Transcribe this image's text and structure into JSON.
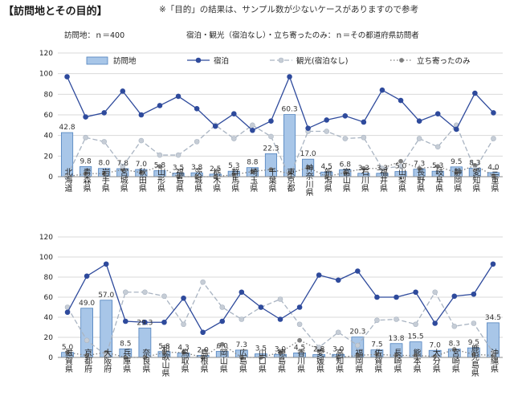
{
  "header": {
    "title": "【訪問地とその目的】",
    "note": "※「目的」の結果は、サンプル数が少ないケースがありますので参考"
  },
  "colors": {
    "bar_fill": "#a8c6e8",
    "bar_stroke": "#4f81bd",
    "stay_line": "#2e4a9c",
    "sightseeing_line": "#a9b4c2",
    "stopby_line": "#7f7f7f",
    "grid": "#d9d9d9"
  },
  "chart_data": [
    {
      "type": "bar",
      "header_text": "訪問地：ｎ＝400",
      "header_text_right": "宿泊・観光（宿泊なし）・立ち寄ったのみ：ｎ＝その都道府県訪問者",
      "ylim": [
        0,
        120
      ],
      "yticks": [
        0,
        20,
        40,
        60,
        80,
        100,
        120
      ],
      "grid": true,
      "legend_position": "top",
      "categories": [
        "北海道",
        "青森県",
        "岩手県",
        "宮城県",
        "秋田県",
        "山形県",
        "福島県",
        "茨城県",
        "栃木県",
        "群馬県",
        "埼玉県",
        "千葉県",
        "東京都",
        "神奈川県",
        "新潟県",
        "富山県",
        "石川県",
        "福井県",
        "山梨県",
        "長野県",
        "岐阜県",
        "静岡県",
        "愛知県",
        "三重県"
      ],
      "series": [
        {
          "name": "訪問地",
          "kind": "bar",
          "values": [
            42.8,
            9.8,
            8.0,
            7.8,
            7.0,
            5.8,
            3.5,
            3.8,
            2.5,
            5.3,
            8.8,
            22.3,
            60.3,
            17.0,
            4.5,
            6.8,
            3.3,
            3.3,
            5.0,
            7.3,
            5.3,
            9.5,
            8.3,
            4.0
          ]
        },
        {
          "name": "宿泊",
          "kind": "line",
          "values": [
            97,
            58,
            62,
            83,
            60,
            69,
            78,
            66,
            49,
            61,
            45,
            54,
            97,
            47,
            55,
            59,
            53,
            84,
            74,
            54,
            61,
            46,
            81,
            62
          ]
        },
        {
          "name": "観光(宿泊なし)",
          "kind": "line",
          "values": [
            0,
            38,
            34,
            10,
            35,
            21,
            21,
            34,
            50,
            37,
            50,
            39,
            0,
            44,
            44,
            37,
            38,
            8,
            10,
            37,
            29,
            50,
            7,
            37
          ]
        },
        {
          "name": "立ち寄ったのみ",
          "kind": "line",
          "values": [
            0,
            3,
            3,
            7,
            4,
            10,
            0,
            0,
            0,
            2,
            5,
            7,
            3,
            9,
            0,
            4,
            8,
            8,
            15,
            8,
            10,
            4,
            11,
            1
          ]
        }
      ]
    },
    {
      "type": "bar",
      "ylim": [
        0,
        120
      ],
      "yticks": [
        0,
        20,
        40,
        60,
        80,
        100,
        120
      ],
      "grid": true,
      "categories": [
        "滋賀県",
        "京都府",
        "大阪府",
        "兵庫県",
        "奈良県",
        "和歌山県",
        "鳥取県",
        "島根県",
        "岡山県",
        "広島県",
        "山口県",
        "徳島県",
        "香川県",
        "愛媛県",
        "高知県",
        "福岡県",
        "佐賀県",
        "長崎県",
        "熊本県",
        "大分県",
        "宮崎県",
        "鹿児島県",
        "沖縄県"
      ],
      "series": [
        {
          "name": "訪問地",
          "kind": "bar",
          "values": [
            5.0,
            49.0,
            57.0,
            8.5,
            29.3,
            5.8,
            4.3,
            2.0,
            6.0,
            7.3,
            3.5,
            3.0,
            4.5,
            2.8,
            3.0,
            20.3,
            7.5,
            13.8,
            15.5,
            7.0,
            8.3,
            9.5,
            34.5
          ]
        },
        {
          "name": "宿泊",
          "kind": "line",
          "values": [
            45,
            81,
            93,
            36,
            35,
            35,
            59,
            25,
            36,
            65,
            50,
            38,
            50,
            82,
            77,
            86,
            60,
            60,
            65,
            34,
            61,
            63,
            93
          ]
        },
        {
          "name": "観光(宿泊なし)",
          "kind": "line",
          "values": [
            50,
            17,
            2,
            65,
            65,
            61,
            33,
            75,
            50,
            38,
            50,
            58,
            33,
            10,
            25,
            12,
            37,
            38,
            33,
            65,
            31,
            34,
            5
          ]
        },
        {
          "name": "立ち寄ったのみ",
          "kind": "line",
          "values": [
            5,
            2,
            5,
            0,
            0,
            5,
            5,
            0,
            13,
            0,
            0,
            5,
            17,
            8,
            0,
            2,
            3,
            2,
            2,
            1,
            8,
            3,
            2
          ]
        }
      ]
    }
  ]
}
